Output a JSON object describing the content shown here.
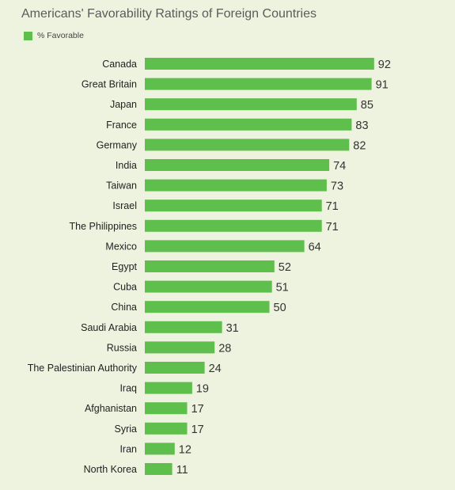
{
  "chart_data": {
    "type": "bar",
    "orientation": "horizontal",
    "title": "Americans' Favorability Ratings of Foreign Countries",
    "legend_position": "top-left",
    "grid": false,
    "xlim": [
      0,
      100
    ],
    "bar_color": "#5fbf4d",
    "background_color": "#eef3e0",
    "categories": [
      "Canada",
      "Great Britain",
      "Japan",
      "France",
      "Germany",
      "India",
      "Taiwan",
      "Israel",
      "The Philippines",
      "Mexico",
      "Egypt",
      "Cuba",
      "China",
      "Saudi Arabia",
      "Russia",
      "The Palestinian Authority",
      "Iraq",
      "Afghanistan",
      "Syria",
      "Iran",
      "North Korea"
    ],
    "series": [
      {
        "name": "% Favorable",
        "values": [
          92,
          91,
          85,
          83,
          82,
          74,
          73,
          71,
          71,
          64,
          52,
          51,
          50,
          31,
          28,
          24,
          19,
          17,
          17,
          12,
          11
        ]
      }
    ]
  }
}
